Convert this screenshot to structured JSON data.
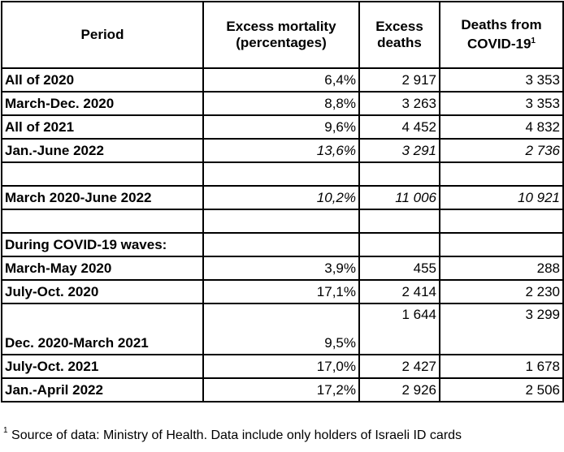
{
  "headers": {
    "period": "Period",
    "pct": "Excess mortality (percentages)",
    "excess": "Excess deaths",
    "covid": "Deaths from COVID-19",
    "covid_sup": "1"
  },
  "rows": [
    {
      "period": "All of 2020",
      "pct": "6,4%",
      "excess": "2 917",
      "covid": "3 353"
    },
    {
      "period": "March-Dec. 2020",
      "pct": "8,8%",
      "excess": "3 263",
      "covid": "3 353"
    },
    {
      "period": "All of 2021",
      "pct": "9,6%",
      "excess": "4 452",
      "covid": "4 832"
    },
    {
      "period": "Jan.-June 2022",
      "pct": "13,6%",
      "excess": "3 291",
      "covid": "2 736"
    },
    {
      "period": "March 2020-June 2022",
      "pct": "10,2%",
      "excess": "11 006",
      "covid": "10 921"
    },
    {
      "period": "During COVID-19 waves:"
    },
    {
      "period": "March-May 2020",
      "pct": "3,9%",
      "excess": "455",
      "covid": "288"
    },
    {
      "period": "July-Oct. 2020",
      "pct": "17,1%",
      "excess": "2 414",
      "covid": "2 230"
    },
    {
      "period": "Dec. 2020-March 2021",
      "pct": "9,5%",
      "excess": "1 644",
      "covid": "3 299"
    },
    {
      "period": "July-Oct. 2021",
      "pct": "17,0%",
      "excess": "2 427",
      "covid": "1 678"
    },
    {
      "period": "Jan.-April 2022",
      "pct": "17,2%",
      "excess": "2 926",
      "covid": "2 506"
    }
  ],
  "footnote": {
    "mark": "1",
    "text": "Source of data: Ministry of Health. Data include only holders of Israeli ID cards"
  }
}
